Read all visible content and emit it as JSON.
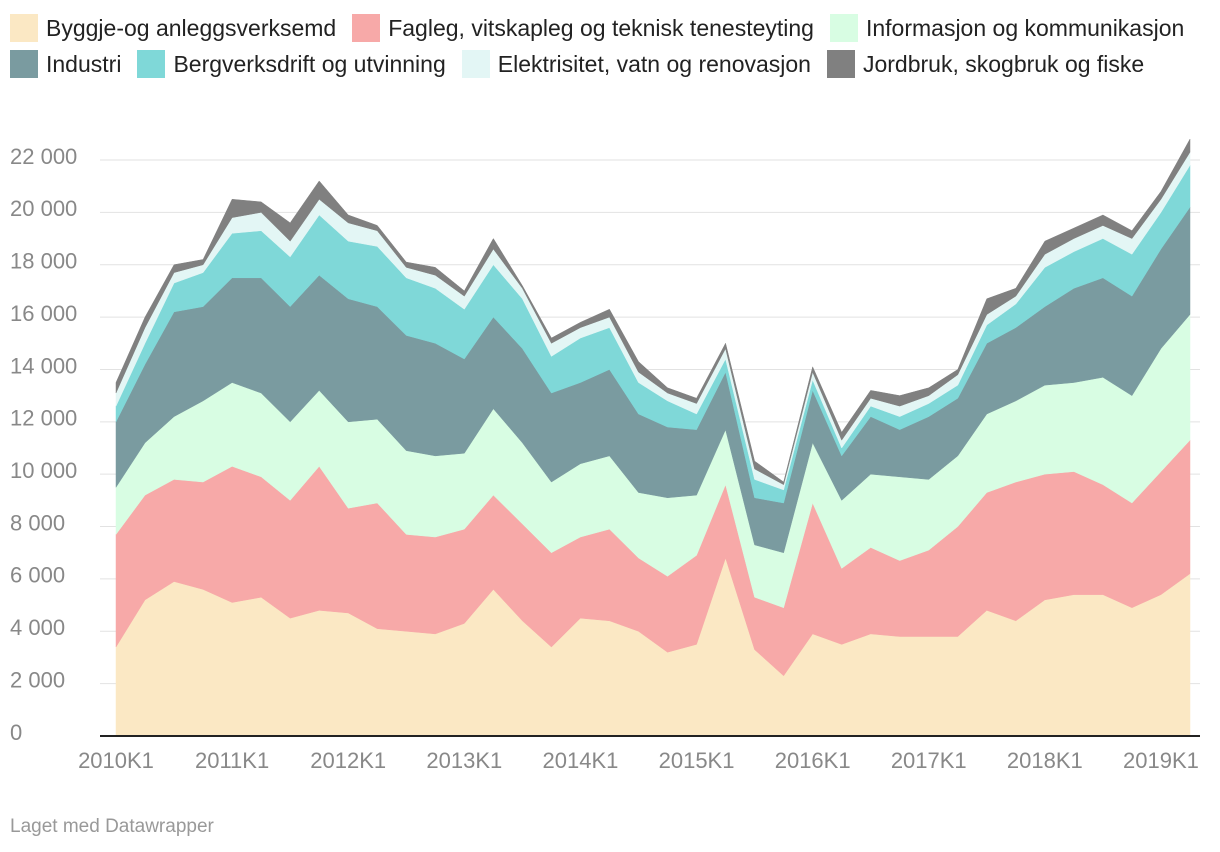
{
  "chart_data": {
    "type": "stacked-area",
    "categories": [
      "2010K1",
      null,
      null,
      null,
      "2011K1",
      null,
      null,
      null,
      "2012K1",
      null,
      null,
      null,
      "2013K1",
      null,
      null,
      null,
      "2014K1",
      null,
      null,
      null,
      "2015K1",
      null,
      null,
      null,
      "2016K1",
      null,
      null,
      null,
      "2017K1",
      null,
      null,
      null,
      "2018K1",
      null,
      null,
      null,
      "2019K1",
      null
    ],
    "series": [
      {
        "name": "Byggje-og anleggsverksemd",
        "color": "#fbe8c4",
        "values": [
          3400,
          5200,
          5900,
          5600,
          5100,
          5300,
          4500,
          4800,
          4700,
          4100,
          4000,
          3900,
          4300,
          5600,
          4400,
          3400,
          4500,
          4400,
          4000,
          3200,
          3500,
          6800,
          3300,
          2300,
          3900,
          3500,
          3900,
          3800,
          3800,
          3800,
          4800,
          4400,
          5200,
          5400,
          5400,
          4900,
          5400,
          6200
        ]
      },
      {
        "name": "Fagleg, vitskapleg og teknisk tenesteyting",
        "color": "#f7a9a8",
        "values": [
          4300,
          4000,
          3900,
          4100,
          5200,
          4600,
          4500,
          5500,
          4000,
          4800,
          3700,
          3700,
          3600,
          3600,
          3700,
          3600,
          3100,
          3500,
          2800,
          2900,
          3400,
          2800,
          2000,
          2600,
          5000,
          2900,
          3300,
          2900,
          3300,
          4200,
          4500,
          5300,
          4800,
          4700,
          4200,
          4000,
          4700,
          5100
        ]
      },
      {
        "name": "Informasjon og kommunikasjon",
        "color": "#d8fde3",
        "values": [
          1800,
          2000,
          2400,
          3100,
          3200,
          3200,
          3000,
          2900,
          3300,
          3200,
          3200,
          3100,
          2900,
          3300,
          3100,
          2700,
          2800,
          2800,
          2500,
          3000,
          2300,
          2100,
          2000,
          2100,
          2300,
          2600,
          2800,
          3200,
          2700,
          2700,
          3000,
          3100,
          3400,
          3400,
          4100,
          4100,
          4700,
          4800
        ]
      },
      {
        "name": "Industri",
        "color": "#7a9ba0",
        "values": [
          2500,
          3000,
          4000,
          3600,
          4000,
          4400,
          4400,
          4400,
          4700,
          4300,
          4400,
          4300,
          3600,
          3500,
          3600,
          3400,
          3100,
          3300,
          3000,
          2700,
          2500,
          2200,
          1800,
          1900,
          2000,
          1700,
          2200,
          1800,
          2400,
          2200,
          2700,
          2800,
          3000,
          3600,
          3800,
          3800,
          3800,
          4100
        ]
      },
      {
        "name": "Bergverksdrift og utvinning",
        "color": "#7fd8d8",
        "values": [
          600,
          800,
          1100,
          1300,
          1700,
          1800,
          1900,
          2300,
          2200,
          2300,
          2200,
          2100,
          1900,
          2000,
          1900,
          1400,
          1700,
          1600,
          1200,
          1000,
          600,
          500,
          700,
          500,
          400,
          300,
          400,
          500,
          500,
          500,
          700,
          900,
          1500,
          1400,
          1500,
          1600,
          1400,
          1600
        ]
      },
      {
        "name": "Elektrisitet, vatn og renovasjon",
        "color": "#e3f6f5",
        "values": [
          500,
          600,
          400,
          300,
          600,
          700,
          600,
          600,
          700,
          600,
          400,
          500,
          500,
          600,
          400,
          500,
          400,
          400,
          400,
          300,
          400,
          400,
          400,
          200,
          300,
          300,
          300,
          400,
          300,
          400,
          400,
          300,
          500,
          500,
          500,
          600,
          500,
          500
        ]
      },
      {
        "name": "Jordbruk, skogbruk og fiske",
        "color": "#808080",
        "values": [
          400,
          400,
          300,
          200,
          700,
          400,
          700,
          700,
          300,
          200,
          200,
          300,
          200,
          400,
          100,
          200,
          200,
          300,
          400,
          200,
          200,
          200,
          300,
          100,
          200,
          300,
          300,
          400,
          300,
          200,
          600,
          300,
          500,
          400,
          400,
          300,
          300,
          500
        ]
      }
    ],
    "ylim": [
      0,
      22000
    ],
    "yticks": [
      0,
      {
        "value": 2000,
        "label": "2 000"
      },
      {
        "value": 4000,
        "label": "4 000"
      },
      {
        "value": 6000,
        "label": "6 000"
      },
      {
        "value": 8000,
        "label": "8 000"
      },
      {
        "value": 10000,
        "label": "10 000"
      },
      {
        "value": 12000,
        "label": "12 000"
      },
      {
        "value": 14000,
        "label": "14 000"
      },
      {
        "value": 16000,
        "label": "16 000"
      },
      {
        "value": 18000,
        "label": "18 000"
      },
      {
        "value": 20000,
        "label": "20 000"
      },
      {
        "value": 22000,
        "label": "22 000"
      }
    ],
    "grid": true,
    "credit": "Laget med Datawrapper"
  }
}
